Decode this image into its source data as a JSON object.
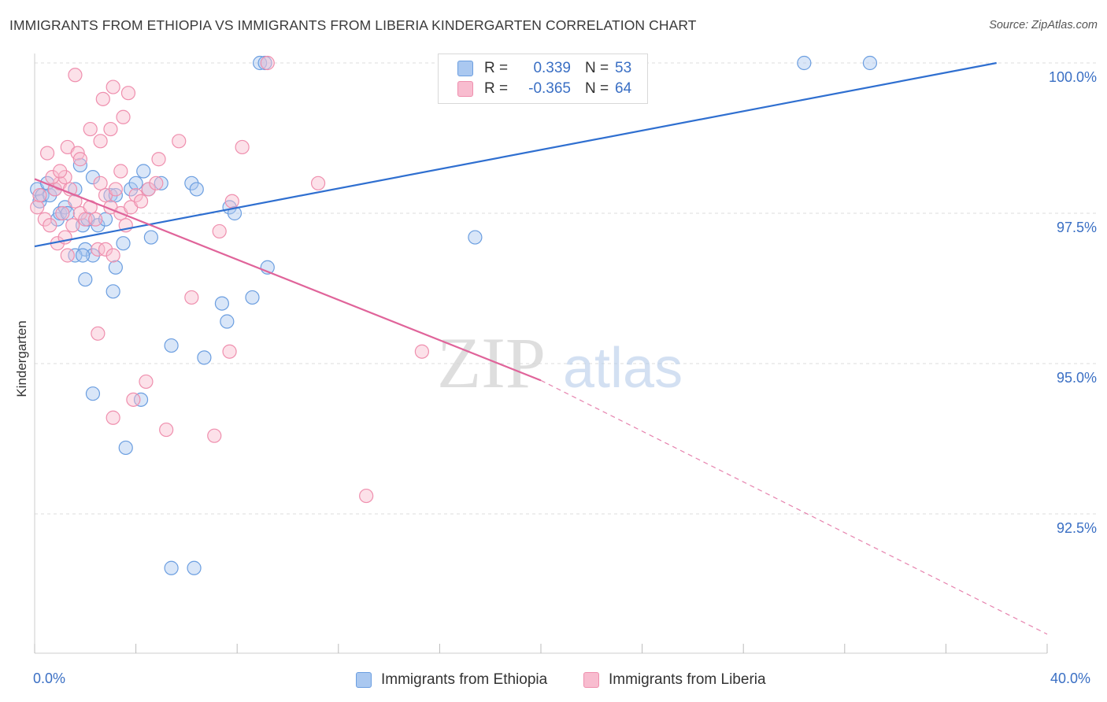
{
  "title": "IMMIGRANTS FROM ETHIOPIA VS IMMIGRANTS FROM LIBERIA KINDERGARTEN CORRELATION CHART",
  "source": "Source: ZipAtlas.com",
  "watermark": {
    "zip": "ZIP",
    "atlas": "atlas"
  },
  "legend": {
    "rows": [
      {
        "r_label": "R =",
        "r_value": "0.339",
        "n_label": "N =",
        "n_value": "53"
      },
      {
        "r_label": "R =",
        "r_value": "-0.365",
        "n_label": "N =",
        "n_value": "64"
      }
    ]
  },
  "bottom_legend": {
    "ethiopia": "Immigrants from Ethiopia",
    "liberia": "Immigrants from Liberia"
  },
  "colors": {
    "ethiopia_fill": "#aac8f0",
    "ethiopia_stroke": "#6b9ee0",
    "ethiopia_line": "#2f6fd0",
    "liberia_fill": "#f8bccf",
    "liberia_stroke": "#ef8fae",
    "liberia_line": "#e0649a",
    "tick_text": "#3a6fc4",
    "grid": "#dddddd"
  },
  "chart_data": {
    "type": "scatter",
    "title": "IMMIGRANTS FROM ETHIOPIA VS IMMIGRANTS FROM LIBERIA KINDERGARTEN CORRELATION CHART",
    "xlabel": "",
    "ylabel": "Kindergarten",
    "xlim": [
      0,
      40
    ],
    "ylim": [
      90.0,
      100.3
    ],
    "x_tick_labels": [
      "0.0%",
      "40.0%"
    ],
    "y_ticks": [
      92.5,
      95.0,
      97.5,
      100.0
    ],
    "y_tick_labels": [
      "92.5%",
      "95.0%",
      "97.5%",
      "100.0%"
    ],
    "grid": true,
    "legend_position": "top-center",
    "series": [
      {
        "name": "Immigrants from Ethiopia",
        "points": [
          [
            0.1,
            97.9
          ],
          [
            0.2,
            97.7
          ],
          [
            0.3,
            97.8
          ],
          [
            0.5,
            98.0
          ],
          [
            0.6,
            97.8
          ],
          [
            0.8,
            97.9
          ],
          [
            0.9,
            97.4
          ],
          [
            1.0,
            97.5
          ],
          [
            1.2,
            97.6
          ],
          [
            1.3,
            97.5
          ],
          [
            1.6,
            97.9
          ],
          [
            1.8,
            98.3
          ],
          [
            1.9,
            97.3
          ],
          [
            2.1,
            97.4
          ],
          [
            2.3,
            98.1
          ],
          [
            2.5,
            97.3
          ],
          [
            2.8,
            97.4
          ],
          [
            3.0,
            97.8
          ],
          [
            3.2,
            97.8
          ],
          [
            3.5,
            97.0
          ],
          [
            3.8,
            97.9
          ],
          [
            4.0,
            98.0
          ],
          [
            4.3,
            98.2
          ],
          [
            4.5,
            97.9
          ],
          [
            5.0,
            98.0
          ],
          [
            2.0,
            96.9
          ],
          [
            2.3,
            96.8
          ],
          [
            3.2,
            96.6
          ],
          [
            4.6,
            97.1
          ],
          [
            6.2,
            98.0
          ],
          [
            6.4,
            97.9
          ],
          [
            7.7,
            97.6
          ],
          [
            7.9,
            97.5
          ],
          [
            9.2,
            96.6
          ],
          [
            1.6,
            96.8
          ],
          [
            1.9,
            96.8
          ],
          [
            2.0,
            96.4
          ],
          [
            3.1,
            96.2
          ],
          [
            7.4,
            96.0
          ],
          [
            8.6,
            96.1
          ],
          [
            7.6,
            95.7
          ],
          [
            5.4,
            95.3
          ],
          [
            6.7,
            95.1
          ],
          [
            2.3,
            94.5
          ],
          [
            4.2,
            94.4
          ],
          [
            3.6,
            93.6
          ],
          [
            5.4,
            91.6
          ],
          [
            6.3,
            91.6
          ],
          [
            8.9,
            100.0
          ],
          [
            9.1,
            100.0
          ],
          [
            30.4,
            100.0
          ],
          [
            33.0,
            100.0
          ],
          [
            17.4,
            97.1
          ]
        ]
      },
      {
        "name": "Immigrants from Liberia",
        "points": [
          [
            0.1,
            97.6
          ],
          [
            0.2,
            97.8
          ],
          [
            0.4,
            97.4
          ],
          [
            0.6,
            97.3
          ],
          [
            0.8,
            97.9
          ],
          [
            1.0,
            98.0
          ],
          [
            1.2,
            98.1
          ],
          [
            1.4,
            97.9
          ],
          [
            1.6,
            97.7
          ],
          [
            1.8,
            97.5
          ],
          [
            2.0,
            97.4
          ],
          [
            2.2,
            97.6
          ],
          [
            2.4,
            97.4
          ],
          [
            2.6,
            98.0
          ],
          [
            2.8,
            97.8
          ],
          [
            3.0,
            97.6
          ],
          [
            3.2,
            97.9
          ],
          [
            3.4,
            97.5
          ],
          [
            3.6,
            97.3
          ],
          [
            3.8,
            97.6
          ],
          [
            4.0,
            97.8
          ],
          [
            4.2,
            97.7
          ],
          [
            4.5,
            97.9
          ],
          [
            4.8,
            98.0
          ],
          [
            1.3,
            98.6
          ],
          [
            1.7,
            98.5
          ],
          [
            2.2,
            98.9
          ],
          [
            2.6,
            98.7
          ],
          [
            3.0,
            98.9
          ],
          [
            3.5,
            99.1
          ],
          [
            3.7,
            99.5
          ],
          [
            2.7,
            99.4
          ],
          [
            3.1,
            99.6
          ],
          [
            1.6,
            99.8
          ],
          [
            0.7,
            98.1
          ],
          [
            1.0,
            98.2
          ],
          [
            1.8,
            98.4
          ],
          [
            3.4,
            98.2
          ],
          [
            4.9,
            98.4
          ],
          [
            5.7,
            98.7
          ],
          [
            8.2,
            98.6
          ],
          [
            11.2,
            98.0
          ],
          [
            0.9,
            97.0
          ],
          [
            1.2,
            97.1
          ],
          [
            1.5,
            97.3
          ],
          [
            2.5,
            96.9
          ],
          [
            2.8,
            96.9
          ],
          [
            3.1,
            96.8
          ],
          [
            7.3,
            97.2
          ],
          [
            7.8,
            97.7
          ],
          [
            6.2,
            96.1
          ],
          [
            2.5,
            95.5
          ],
          [
            7.7,
            95.2
          ],
          [
            15.3,
            95.2
          ],
          [
            4.4,
            94.7
          ],
          [
            3.9,
            94.4
          ],
          [
            3.1,
            94.1
          ],
          [
            5.2,
            93.9
          ],
          [
            7.1,
            93.8
          ],
          [
            13.1,
            92.8
          ],
          [
            9.2,
            100.0
          ],
          [
            0.5,
            98.5
          ],
          [
            1.3,
            96.8
          ],
          [
            1.1,
            97.5
          ]
        ]
      }
    ],
    "trend_lines": [
      {
        "name": "Immigrants from Ethiopia",
        "x": [
          0,
          38
        ],
        "y": [
          96.95,
          100.0
        ]
      },
      {
        "name": "Immigrants from Liberia",
        "x": [
          0,
          20.0
        ],
        "y": [
          98.07,
          94.72
        ],
        "dashed_extension": {
          "x": [
            20.0,
            40.0
          ],
          "y": [
            94.72,
            90.5
          ]
        }
      }
    ]
  }
}
